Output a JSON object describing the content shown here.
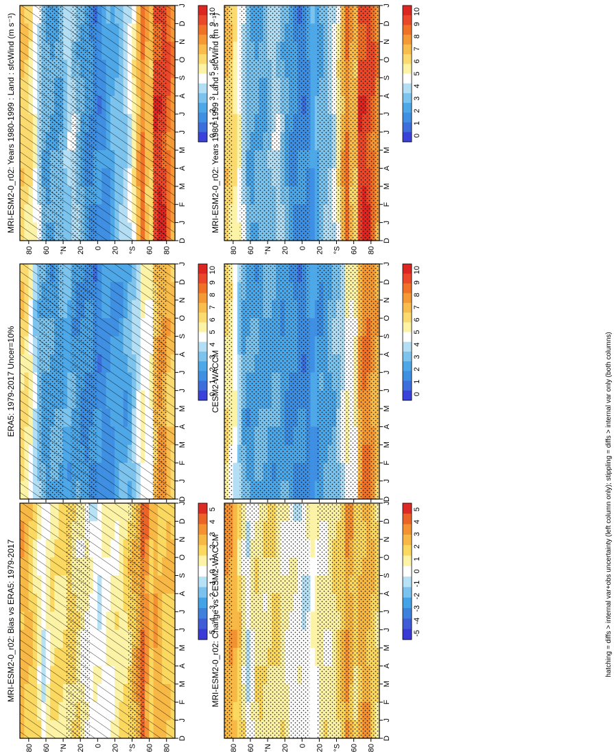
{
  "figure": {
    "caption": "hatching = diffs > internal var+obs uncertainty (left column only); stippling = diffs > internal var only (both columns)"
  },
  "chart_data": [
    {
      "type": "heatmap",
      "id": "mod-col1",
      "title": "MRI-ESM2-0_r02: Years 1980-1999 : Land : sfcWind (m s⁻¹)",
      "x_ticks": [
        "D",
        "J",
        "F",
        "M",
        "A",
        "M",
        "J",
        "J",
        "A",
        "S",
        "O",
        "N",
        "D",
        "J"
      ],
      "y_ticks": [
        "80",
        "60",
        "°N",
        "20",
        "0",
        "20",
        "°S",
        "60",
        "80"
      ],
      "colorbar": [
        "10",
        "9",
        "8",
        "7",
        "6",
        "5",
        "4",
        "3",
        "2",
        "1",
        "0"
      ],
      "range": [
        0,
        10
      ],
      "palette": "speed",
      "hatching": true,
      "stippling": "patchy",
      "lat_profile": [
        {
          "lat": 90,
          "v": 6.5
        },
        {
          "lat": 80,
          "v": 6.0
        },
        {
          "lat": 70,
          "v": 4.5
        },
        {
          "lat": 60,
          "v": 2.8
        },
        {
          "lat": 50,
          "v": 2.8
        },
        {
          "lat": 40,
          "v": 3.3
        },
        {
          "lat": 30,
          "v": 4.0
        },
        {
          "lat": 20,
          "v": 3.2
        },
        {
          "lat": 10,
          "v": 2.0
        },
        {
          "lat": 0,
          "v": 1.8
        },
        {
          "lat": -10,
          "v": 2.2
        },
        {
          "lat": -20,
          "v": 2.8
        },
        {
          "lat": -30,
          "v": 3.6
        },
        {
          "lat": -40,
          "v": 4.6
        },
        {
          "lat": -50,
          "v": 7.5
        },
        {
          "lat": -55,
          "v": 8.5
        },
        {
          "lat": -60,
          "v": 5.2
        },
        {
          "lat": -67,
          "v": 8.8
        },
        {
          "lat": -75,
          "v": 9.2
        },
        {
          "lat": -85,
          "v": 8.0
        },
        {
          "lat": -90,
          "v": 7.0
        }
      ]
    },
    {
      "type": "heatmap",
      "id": "mod-col2",
      "title": "MRI-ESM2-0_r02: Years 1980-1999 : Land : sfcWind (m s⁻¹)",
      "x_ticks": [
        "D",
        "J",
        "F",
        "M",
        "A",
        "M",
        "J",
        "J",
        "A",
        "S",
        "O",
        "N",
        "D",
        "J"
      ],
      "y_ticks": [
        "80",
        "60",
        "°N",
        "20",
        "0",
        "20",
        "°S",
        "60",
        "80"
      ],
      "colorbar": [
        "10",
        "9",
        "8",
        "7",
        "6",
        "5",
        "4",
        "3",
        "2",
        "1",
        "0"
      ],
      "range": [
        0,
        10
      ],
      "palette": "speed",
      "hatching": false,
      "stippling": "dense",
      "lat_profile": [
        {
          "lat": 90,
          "v": 6.5
        },
        {
          "lat": 80,
          "v": 6.0
        },
        {
          "lat": 70,
          "v": 4.5
        },
        {
          "lat": 60,
          "v": 2.8
        },
        {
          "lat": 50,
          "v": 2.8
        },
        {
          "lat": 40,
          "v": 3.3
        },
        {
          "lat": 30,
          "v": 4.0
        },
        {
          "lat": 20,
          "v": 3.2
        },
        {
          "lat": 10,
          "v": 2.0
        },
        {
          "lat": 0,
          "v": 1.8
        },
        {
          "lat": -10,
          "v": 2.2
        },
        {
          "lat": -20,
          "v": 2.8
        },
        {
          "lat": -30,
          "v": 3.6
        },
        {
          "lat": -40,
          "v": 4.6
        },
        {
          "lat": -50,
          "v": 7.5
        },
        {
          "lat": -55,
          "v": 8.5
        },
        {
          "lat": -60,
          "v": 5.2
        },
        {
          "lat": -67,
          "v": 8.8
        },
        {
          "lat": -75,
          "v": 9.2
        },
        {
          "lat": -85,
          "v": 8.0
        },
        {
          "lat": -90,
          "v": 7.0
        }
      ]
    },
    {
      "type": "heatmap",
      "id": "obs",
      "title": "ERA5: 1979-2017 Uncer=10%",
      "x_ticks": [
        "D",
        "J",
        "F",
        "M",
        "A",
        "M",
        "J",
        "J",
        "A",
        "S",
        "O",
        "N",
        "D",
        "J"
      ],
      "y_ticks": [
        "80",
        "60",
        "°N",
        "20",
        "0",
        "20",
        "°S",
        "60",
        "80"
      ],
      "colorbar": [
        "10",
        "9",
        "8",
        "7",
        "6",
        "5",
        "4",
        "3",
        "2",
        "1",
        "0"
      ],
      "range": [
        0,
        10
      ],
      "palette": "speed",
      "hatching": true,
      "stippling": "patchy",
      "lat_profile": [
        {
          "lat": 90,
          "v": 6.2
        },
        {
          "lat": 80,
          "v": 5.5
        },
        {
          "lat": 70,
          "v": 3.5
        },
        {
          "lat": 60,
          "v": 2.6
        },
        {
          "lat": 40,
          "v": 2.8
        },
        {
          "lat": 20,
          "v": 2.4
        },
        {
          "lat": 0,
          "v": 1.8
        },
        {
          "lat": -20,
          "v": 2.2
        },
        {
          "lat": -40,
          "v": 3.0
        },
        {
          "lat": -50,
          "v": 4.5
        },
        {
          "lat": -55,
          "v": 5.5
        },
        {
          "lat": -60,
          "v": 4.0
        },
        {
          "lat": -67,
          "v": 6.5
        },
        {
          "lat": -75,
          "v": 7.5
        },
        {
          "lat": -85,
          "v": 6.5
        },
        {
          "lat": -90,
          "v": 6.0
        }
      ]
    },
    {
      "type": "heatmap",
      "id": "cesm",
      "title": "CESM2-WACCM",
      "x_ticks": [
        "D",
        "J",
        "F",
        "M",
        "A",
        "M",
        "J",
        "J",
        "A",
        "S",
        "O",
        "N",
        "D",
        "J"
      ],
      "y_ticks": [
        "80",
        "60",
        "°N",
        "20",
        "0",
        "20",
        "°S",
        "60",
        "80"
      ],
      "colorbar": [
        "10",
        "9",
        "8",
        "7",
        "6",
        "5",
        "4",
        "3",
        "2",
        "1",
        "0"
      ],
      "range": [
        0,
        10
      ],
      "palette": "speed",
      "hatching": false,
      "stippling": "dense",
      "lat_profile": [
        {
          "lat": 90,
          "v": 6.0
        },
        {
          "lat": 80,
          "v": 5.0
        },
        {
          "lat": 70,
          "v": 3.2
        },
        {
          "lat": 60,
          "v": 2.5
        },
        {
          "lat": 40,
          "v": 2.8
        },
        {
          "lat": 20,
          "v": 2.5
        },
        {
          "lat": 0,
          "v": 1.8
        },
        {
          "lat": -20,
          "v": 2.3
        },
        {
          "lat": -40,
          "v": 3.2
        },
        {
          "lat": -50,
          "v": 4.5
        },
        {
          "lat": -55,
          "v": 5.6
        },
        {
          "lat": -60,
          "v": 4.0
        },
        {
          "lat": -67,
          "v": 7.0
        },
        {
          "lat": -75,
          "v": 8.2
        },
        {
          "lat": -85,
          "v": 7.0
        },
        {
          "lat": -90,
          "v": 6.5
        }
      ]
    },
    {
      "type": "heatmap",
      "id": "bias",
      "title": "MRI-ESM2-0_r02: Bias vs ERA5: 1979-2017",
      "x_ticks": [
        "D",
        "J",
        "F",
        "M",
        "A",
        "M",
        "J",
        "J",
        "A",
        "S",
        "O",
        "N",
        "D",
        "J"
      ],
      "y_ticks": [
        "80",
        "60",
        "°N",
        "20",
        "0",
        "20",
        "°S",
        "60",
        "80"
      ],
      "colorbar": [
        "5",
        "4",
        "3",
        "2",
        "1",
        "0",
        "-1",
        "-2",
        "-3",
        "-4",
        "-5"
      ],
      "range": [
        -5,
        5
      ],
      "palette": "diff",
      "hatching": true,
      "stippling": "sparse",
      "lat_profile": [
        {
          "lat": 90,
          "v": 2.5
        },
        {
          "lat": 80,
          "v": 2.0
        },
        {
          "lat": 70,
          "v": 1.2
        },
        {
          "lat": 62,
          "v": -0.3
        },
        {
          "lat": 55,
          "v": 1.0
        },
        {
          "lat": 40,
          "v": 1.2
        },
        {
          "lat": 30,
          "v": 1.4
        },
        {
          "lat": 20,
          "v": 0.8
        },
        {
          "lat": 10,
          "v": 0.1
        },
        {
          "lat": 0,
          "v": -0.1
        },
        {
          "lat": -10,
          "v": 0.2
        },
        {
          "lat": -20,
          "v": 0.7
        },
        {
          "lat": -30,
          "v": 1.0
        },
        {
          "lat": -40,
          "v": 1.5
        },
        {
          "lat": -50,
          "v": 2.8
        },
        {
          "lat": -55,
          "v": 4.5
        },
        {
          "lat": -60,
          "v": 1.5
        },
        {
          "lat": -67,
          "v": 2.5
        },
        {
          "lat": -75,
          "v": 2.0
        },
        {
          "lat": -85,
          "v": 1.8
        },
        {
          "lat": -90,
          "v": 1.5
        }
      ]
    },
    {
      "type": "heatmap",
      "id": "change",
      "title": "MRI-ESM2-0_r02: Change vs CESM2-WACCM",
      "x_ticks": [
        "D",
        "J",
        "F",
        "M",
        "A",
        "M",
        "J",
        "J",
        "A",
        "S",
        "O",
        "N",
        "D",
        "J"
      ],
      "y_ticks": [
        "80",
        "60",
        "°N",
        "20",
        "0",
        "20",
        "°S",
        "60",
        "80"
      ],
      "colorbar": [
        "5",
        "4",
        "3",
        "2",
        "1",
        "0",
        "-1",
        "-2",
        "-3",
        "-4",
        "-5"
      ],
      "range": [
        -5,
        5
      ],
      "palette": "diff",
      "hatching": false,
      "stippling": "dense",
      "lat_profile": [
        {
          "lat": 90,
          "v": 2.5
        },
        {
          "lat": 80,
          "v": 2.5
        },
        {
          "lat": 70,
          "v": 1.3
        },
        {
          "lat": 62,
          "v": -0.5
        },
        {
          "lat": 55,
          "v": 0.8
        },
        {
          "lat": 40,
          "v": 1.0
        },
        {
          "lat": 30,
          "v": 1.2
        },
        {
          "lat": 20,
          "v": 0.6
        },
        {
          "lat": 10,
          "v": 0.1
        },
        {
          "lat": 0,
          "v": -0.2
        },
        {
          "lat": -10,
          "v": 0.1
        },
        {
          "lat": -20,
          "v": 0.5
        },
        {
          "lat": -30,
          "v": 0.6
        },
        {
          "lat": -40,
          "v": 1.0
        },
        {
          "lat": -50,
          "v": 2.0
        },
        {
          "lat": -55,
          "v": 3.5
        },
        {
          "lat": -60,
          "v": 1.0
        },
        {
          "lat": -67,
          "v": 2.0
        },
        {
          "lat": -75,
          "v": 2.5
        },
        {
          "lat": -85,
          "v": 1.5
        },
        {
          "lat": -90,
          "v": 1.0
        }
      ]
    }
  ]
}
